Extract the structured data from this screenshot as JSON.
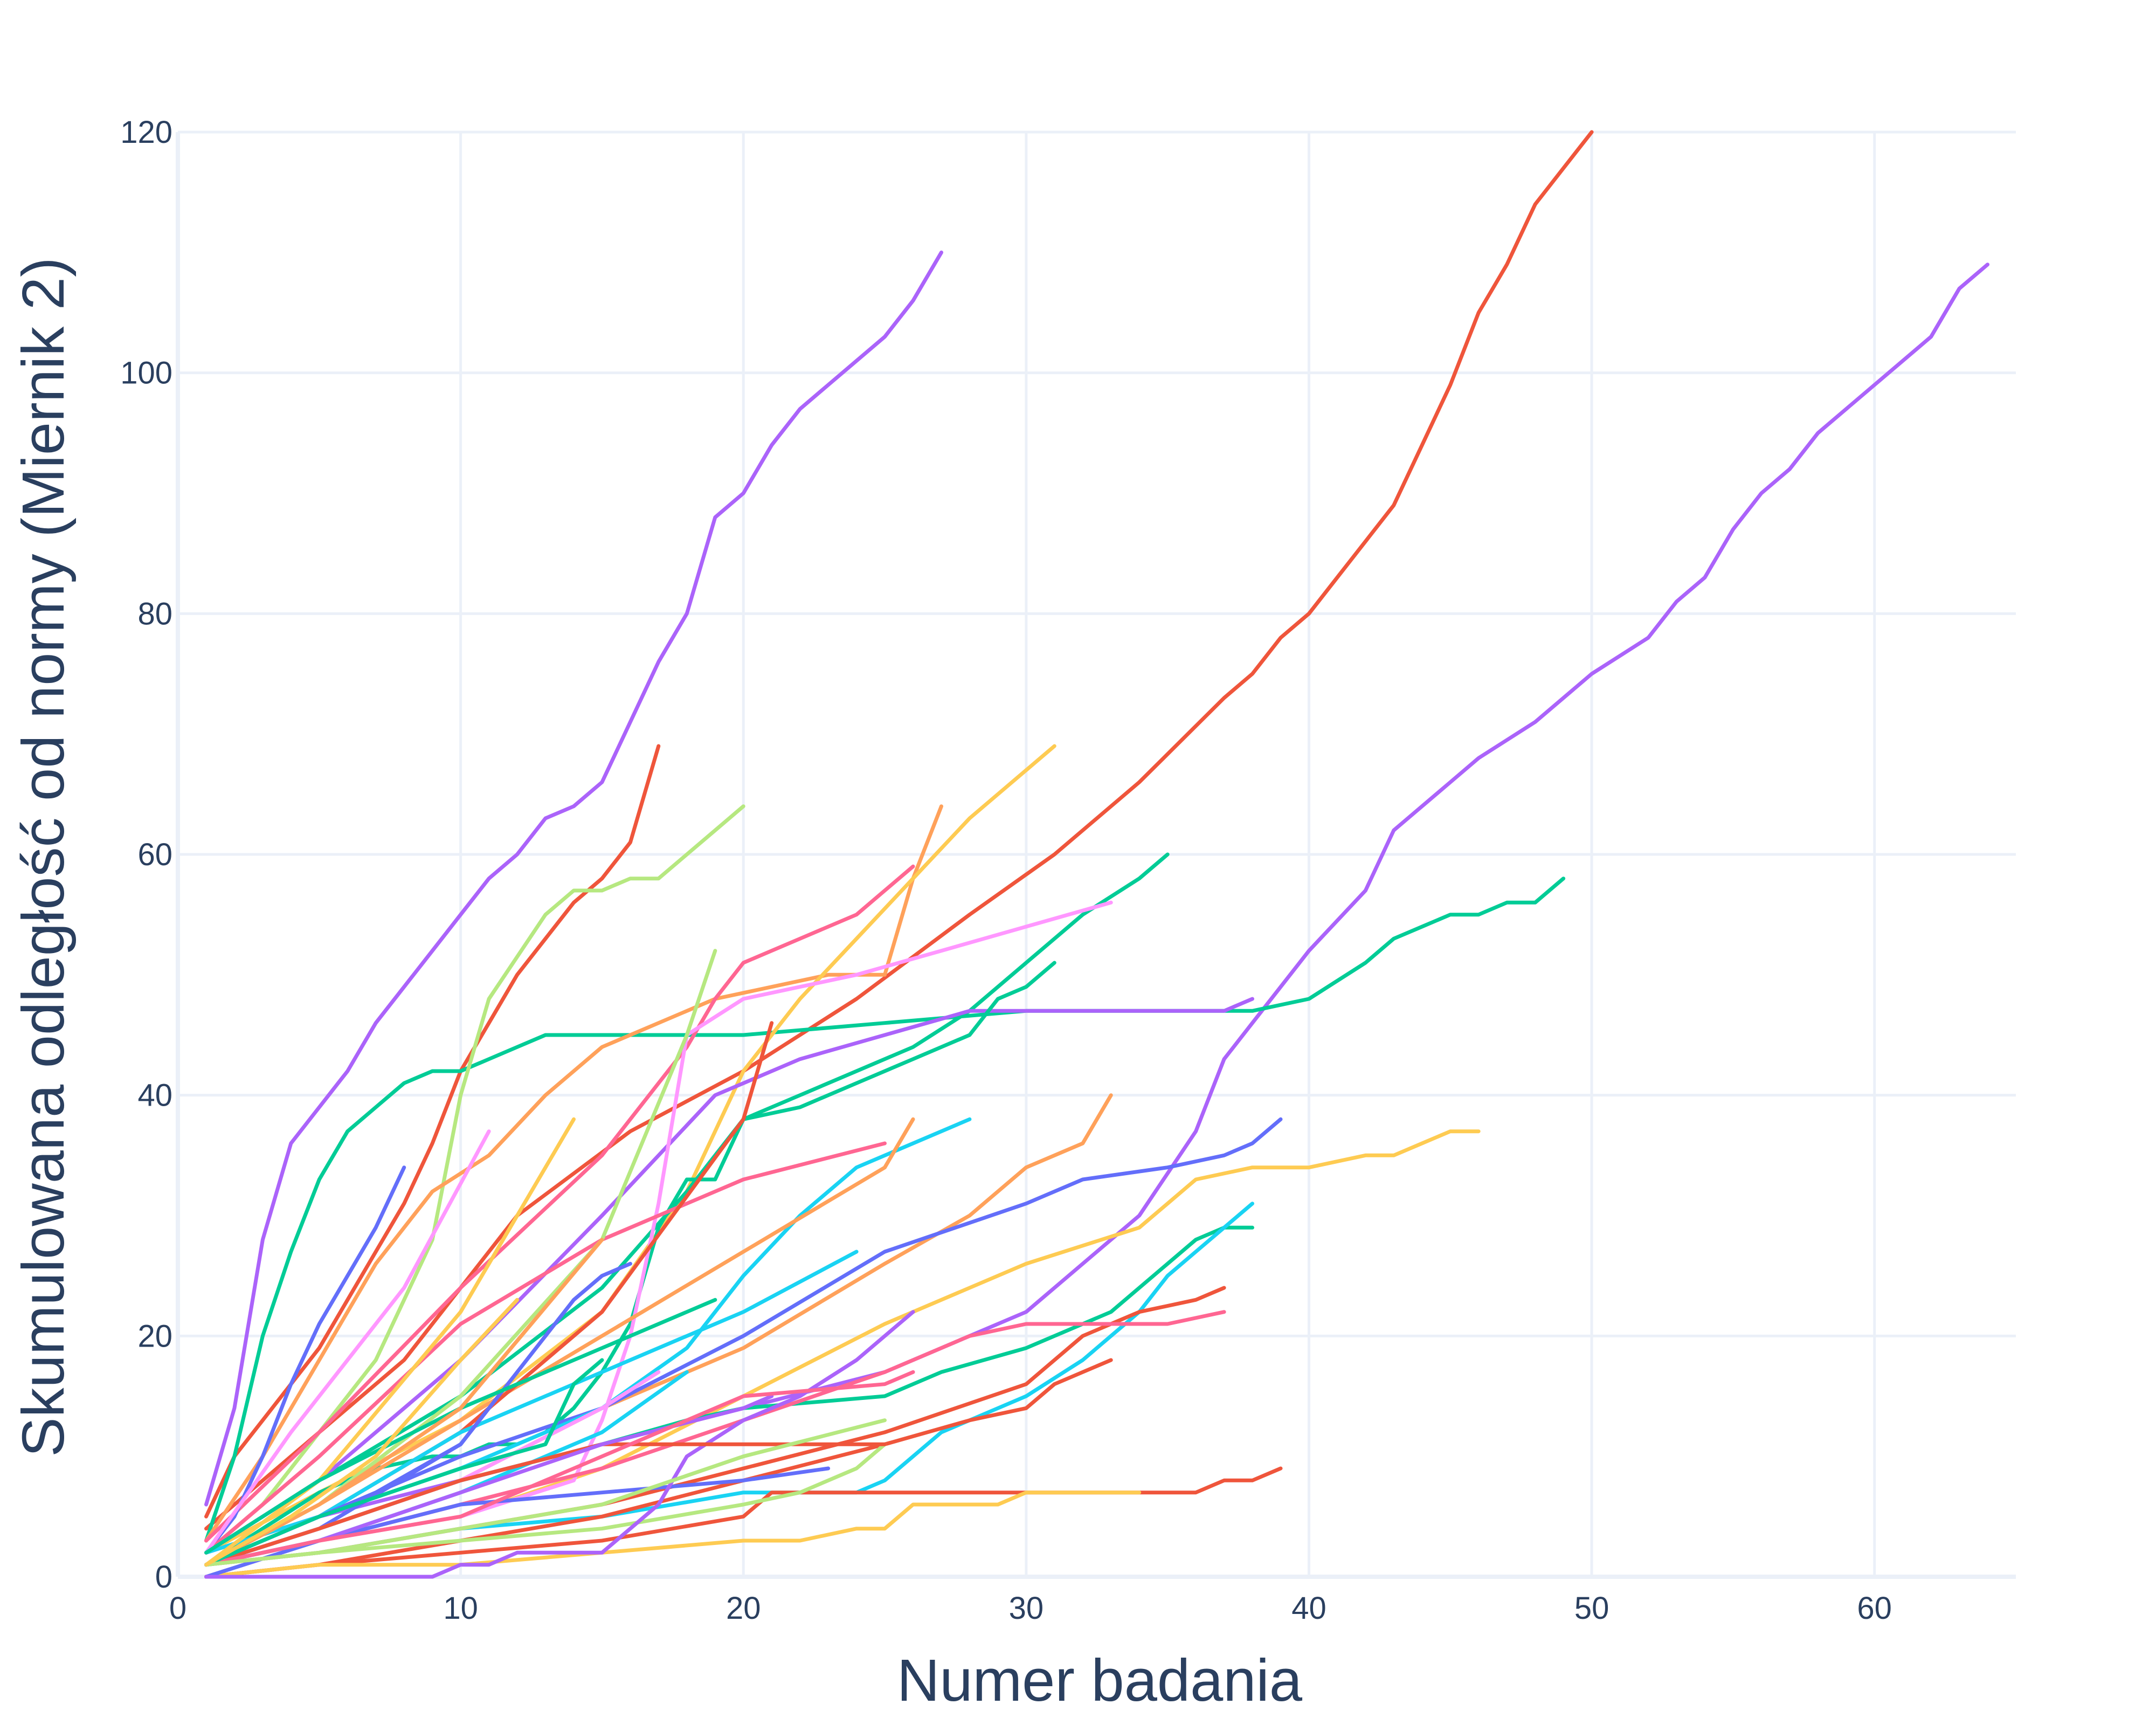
{
  "chart_data": {
    "type": "line",
    "title": "",
    "xlabel": "Numer badania",
    "ylabel": "Skumulowana odległość od normy (Miernik 2)",
    "xlim": [
      0,
      65
    ],
    "ylim": [
      0,
      120
    ],
    "xticks": [
      0,
      10,
      20,
      30,
      40,
      50,
      60
    ],
    "yticks": [
      0,
      20,
      40,
      60,
      80,
      100,
      120
    ],
    "grid": true,
    "legend": "none",
    "series": [
      {
        "color": "#AB63FA",
        "x": [
          1,
          2,
          3,
          4,
          5,
          6,
          7,
          8,
          9,
          10,
          11,
          12,
          13,
          14,
          15,
          16,
          17,
          18,
          19,
          20,
          21,
          22,
          23,
          24,
          25,
          26,
          27
        ],
        "y": [
          6,
          14,
          28,
          36,
          39,
          42,
          46,
          49,
          52,
          55,
          58,
          60,
          63,
          64,
          66,
          71,
          76,
          80,
          88,
          90,
          94,
          97,
          99,
          101,
          103,
          106,
          110
        ]
      },
      {
        "color": "#EF553B",
        "x": [
          1,
          2,
          3,
          4,
          5,
          6,
          7,
          8,
          9,
          10,
          11,
          12,
          13,
          14,
          15,
          16,
          17
        ],
        "y": [
          5,
          10,
          13,
          16,
          19,
          23,
          27,
          31,
          36,
          42,
          46,
          50,
          53,
          56,
          58,
          61,
          69
        ]
      },
      {
        "color": "#EF553B",
        "x": [
          1,
          4,
          8,
          12,
          16,
          20,
          24,
          28,
          31,
          34,
          37,
          38,
          39,
          40,
          41,
          42,
          43,
          44,
          45,
          46,
          47,
          48,
          49,
          50
        ],
        "y": [
          4,
          10,
          18,
          30,
          37,
          42,
          48,
          55,
          60,
          66,
          73,
          75,
          78,
          80,
          83,
          86,
          89,
          94,
          99,
          105,
          109,
          114,
          117,
          120
        ]
      },
      {
        "color": "#AB63FA",
        "x": [
          1,
          5,
          10,
          15,
          20,
          25,
          30,
          34,
          36,
          37,
          38,
          39,
          40,
          42,
          43,
          45,
          46,
          48,
          50,
          52,
          53,
          54,
          55,
          56,
          57,
          58,
          60,
          62,
          63,
          64
        ],
        "y": [
          2,
          5,
          8,
          11,
          14,
          17,
          22,
          30,
          37,
          43,
          46,
          49,
          52,
          57,
          62,
          66,
          68,
          71,
          75,
          78,
          81,
          83,
          87,
          90,
          92,
          95,
          99,
          103,
          107,
          109
        ]
      },
      {
        "color": "#00CC96",
        "x": [
          1,
          2,
          3,
          4,
          5,
          6,
          7,
          8,
          9,
          10,
          11,
          12,
          13,
          14,
          15,
          20,
          25,
          30,
          35,
          38,
          40,
          42,
          43,
          44,
          45,
          46,
          47,
          48,
          49
        ],
        "y": [
          3,
          10,
          20,
          27,
          33,
          37,
          39,
          41,
          42,
          42,
          43,
          44,
          45,
          45,
          45,
          45,
          46,
          47,
          47,
          47,
          48,
          51,
          53,
          54,
          55,
          55,
          56,
          56,
          58
        ]
      },
      {
        "color": "#B6E880",
        "x": [
          1,
          3,
          5,
          7,
          9,
          10,
          11,
          13,
          14,
          15,
          16,
          17,
          18,
          19,
          20
        ],
        "y": [
          2,
          6,
          12,
          18,
          28,
          40,
          48,
          55,
          57,
          57,
          58,
          58,
          60,
          62,
          64
        ]
      },
      {
        "color": "#FFA15A",
        "x": [
          1,
          3,
          5,
          7,
          9,
          11,
          13,
          15,
          17,
          19,
          21,
          23,
          25,
          26,
          27
        ],
        "y": [
          3,
          10,
          18,
          26,
          32,
          35,
          40,
          44,
          46,
          48,
          49,
          50,
          50,
          58,
          64
        ]
      },
      {
        "color": "#FECB52",
        "x": [
          1,
          5,
          10,
          15,
          18,
          20,
          22,
          24,
          26,
          28,
          30,
          31
        ],
        "y": [
          2,
          7,
          13,
          22,
          32,
          42,
          48,
          53,
          58,
          63,
          67,
          69
        ]
      },
      {
        "color": "#FF6692",
        "x": [
          1,
          5,
          10,
          15,
          18,
          19,
          20,
          22,
          24,
          25,
          26
        ],
        "y": [
          3,
          12,
          24,
          35,
          44,
          48,
          51,
          53,
          55,
          57,
          59
        ]
      },
      {
        "color": "#00CC96",
        "x": [
          1,
          5,
          10,
          15,
          18,
          20,
          22,
          24,
          26,
          28,
          30,
          32,
          34,
          35
        ],
        "y": [
          2,
          8,
          15,
          24,
          32,
          38,
          40,
          42,
          44,
          47,
          51,
          55,
          58,
          60
        ]
      },
      {
        "color": "#AB63FA",
        "x": [
          1,
          5,
          10,
          15,
          19,
          22,
          25,
          28,
          30,
          33,
          35,
          37,
          38
        ],
        "y": [
          2,
          8,
          18,
          30,
          40,
          43,
          45,
          47,
          47,
          47,
          47,
          47,
          48
        ]
      },
      {
        "color": "#00CC96",
        "x": [
          1,
          3,
          5,
          7,
          9,
          10,
          11,
          12,
          13,
          14,
          15,
          16,
          17,
          18,
          19,
          20,
          22,
          24,
          26,
          28,
          29,
          30,
          31
        ],
        "y": [
          1,
          4,
          7,
          9,
          10,
          10,
          11,
          11,
          12,
          14,
          17,
          21,
          29,
          33,
          33,
          38,
          39,
          41,
          43,
          45,
          48,
          49,
          51
        ]
      },
      {
        "color": "#FFA15A",
        "x": [
          1,
          5,
          10,
          15,
          20,
          25,
          28,
          30,
          32,
          33
        ],
        "y": [
          1,
          4,
          8,
          14,
          19,
          26,
          30,
          34,
          36,
          40
        ]
      },
      {
        "color": "#636EFA",
        "x": [
          1,
          5,
          10,
          15,
          20,
          25,
          30,
          32,
          35,
          37,
          38,
          39
        ],
        "y": [
          1,
          5,
          10,
          14,
          20,
          27,
          31,
          33,
          34,
          35,
          36,
          38
        ]
      },
      {
        "color": "#FECB52",
        "x": [
          1,
          5,
          10,
          15,
          20,
          25,
          30,
          34,
          35,
          36,
          38,
          40,
          42,
          43,
          44,
          45,
          46
        ],
        "y": [
          1,
          3,
          5,
          9,
          15,
          21,
          26,
          29,
          31,
          33,
          34,
          34,
          35,
          35,
          36,
          37,
          37
        ]
      },
      {
        "color": "#19D3F3",
        "x": [
          1,
          5,
          10,
          15,
          18,
          20,
          22,
          24,
          26,
          28
        ],
        "y": [
          2,
          5,
          9,
          14,
          19,
          25,
          30,
          34,
          36,
          38
        ]
      },
      {
        "color": "#FF97FF",
        "x": [
          1,
          5,
          10,
          14,
          15,
          16,
          17,
          18,
          20,
          24,
          27,
          30,
          33
        ],
        "y": [
          1,
          3,
          5,
          8,
          13,
          20,
          31,
          45,
          48,
          50,
          52,
          54,
          56
        ]
      },
      {
        "color": "#00CC96",
        "x": [
          1,
          5,
          10,
          15,
          18,
          20,
          25,
          27,
          30,
          33,
          35,
          36,
          37,
          38
        ],
        "y": [
          1,
          4,
          8,
          11,
          13,
          14,
          15,
          17,
          19,
          22,
          26,
          28,
          29,
          29
        ]
      },
      {
        "color": "#19D3F3",
        "x": [
          1,
          5,
          10,
          15,
          20,
          24,
          25,
          26,
          27,
          28,
          30,
          32,
          33,
          34,
          35,
          36,
          37,
          38
        ],
        "y": [
          1,
          2,
          4,
          5,
          7,
          7,
          8,
          10,
          12,
          13,
          15,
          18,
          20,
          22,
          25,
          27,
          29,
          31
        ]
      },
      {
        "color": "#EF553B",
        "x": [
          1,
          5,
          10,
          15,
          20,
          25,
          30,
          32,
          33,
          34,
          36,
          37
        ],
        "y": [
          1,
          2,
          4,
          6,
          9,
          12,
          16,
          20,
          21,
          22,
          23,
          24
        ]
      },
      {
        "color": "#FF6692",
        "x": [
          1,
          5,
          10,
          15,
          20,
          25,
          28,
          30,
          33,
          35,
          37
        ],
        "y": [
          1,
          3,
          6,
          9,
          13,
          17,
          20,
          21,
          21,
          21,
          22
        ]
      },
      {
        "color": "#EF553B",
        "x": [
          1,
          5,
          10,
          15,
          20,
          25,
          28,
          30,
          31,
          32,
          33
        ],
        "y": [
          0,
          1,
          3,
          5,
          8,
          11,
          13,
          14,
          16,
          17,
          18
        ]
      },
      {
        "color": "#EF553B",
        "x": [
          1,
          5,
          10,
          15,
          20,
          21,
          25,
          30,
          33,
          35,
          36,
          37,
          38,
          39
        ],
        "y": [
          0,
          1,
          2,
          3,
          5,
          7,
          7,
          7,
          7,
          7,
          7,
          8,
          8,
          9
        ]
      },
      {
        "color": "#FECB52",
        "x": [
          1,
          5,
          10,
          15,
          20,
          22,
          24,
          25,
          26,
          28,
          29,
          30,
          31,
          32,
          33,
          34
        ],
        "y": [
          0,
          1,
          1,
          2,
          3,
          3,
          4,
          4,
          6,
          6,
          6,
          7,
          7,
          7,
          7,
          7
        ]
      },
      {
        "color": "#636EFA",
        "x": [
          1,
          5,
          10,
          15,
          20,
          23
        ],
        "y": [
          0,
          3,
          6,
          7,
          8,
          9
        ]
      },
      {
        "color": "#B6E880",
        "x": [
          1,
          5,
          10,
          15,
          20,
          22,
          24,
          25
        ],
        "y": [
          1,
          2,
          3,
          4,
          6,
          7,
          9,
          11
        ]
      },
      {
        "color": "#AB63FA",
        "x": [
          1,
          9,
          10,
          11,
          12,
          13,
          14,
          15,
          16,
          17,
          18,
          20,
          22,
          24,
          26
        ],
        "y": [
          0,
          0,
          1,
          1,
          2,
          2,
          2,
          2,
          4,
          6,
          10,
          13,
          15,
          18,
          22
        ]
      },
      {
        "color": "#636EFA",
        "x": [
          1,
          2,
          3,
          4,
          5,
          6,
          7,
          8
        ],
        "y": [
          2,
          5,
          10,
          16,
          21,
          25,
          29,
          34
        ]
      },
      {
        "color": "#FF6692",
        "x": [
          1,
          5,
          10,
          15,
          20,
          25
        ],
        "y": [
          2,
          10,
          21,
          28,
          33,
          36
        ]
      },
      {
        "color": "#FFA15A",
        "x": [
          1,
          5,
          10,
          15,
          20,
          25,
          26
        ],
        "y": [
          1,
          6,
          13,
          20,
          27,
          34,
          38
        ]
      },
      {
        "color": "#B6E880",
        "x": [
          1,
          5,
          10,
          15,
          18,
          19
        ],
        "y": [
          1,
          6,
          15,
          28,
          45,
          52
        ]
      },
      {
        "color": "#EF553B",
        "x": [
          1,
          5,
          10,
          15,
          20,
          21
        ],
        "y": [
          1,
          5,
          12,
          22,
          38,
          46
        ]
      },
      {
        "color": "#FF97FF",
        "x": [
          1,
          4,
          8,
          11
        ],
        "y": [
          2,
          12,
          24,
          37
        ]
      },
      {
        "color": "#FECB52",
        "x": [
          1,
          5,
          10,
          14
        ],
        "y": [
          1,
          8,
          22,
          38
        ]
      },
      {
        "color": "#19D3F3",
        "x": [
          1,
          5,
          10,
          15,
          20,
          24
        ],
        "y": [
          1,
          5,
          12,
          17,
          22,
          27
        ]
      },
      {
        "color": "#636EFA",
        "x": [
          1,
          5,
          10,
          13,
          14,
          15,
          16
        ],
        "y": [
          1,
          4,
          11,
          20,
          23,
          25,
          26
        ]
      },
      {
        "color": "#00CC96",
        "x": [
          1,
          5,
          10,
          15,
          19
        ],
        "y": [
          2,
          8,
          14,
          19,
          23
        ]
      },
      {
        "color": "#FFA15A",
        "x": [
          1,
          5,
          10,
          15
        ],
        "y": [
          1,
          6,
          14,
          28
        ]
      },
      {
        "color": "#FF97FF",
        "x": [
          1,
          5,
          10,
          15,
          17
        ],
        "y": [
          1,
          4,
          8,
          14,
          17
        ]
      },
      {
        "color": "#19D3F3",
        "x": [
          1,
          5,
          10,
          15,
          18
        ],
        "y": [
          1,
          3,
          7,
          12,
          17
        ]
      },
      {
        "color": "#EF553B",
        "x": [
          1,
          5,
          10,
          15,
          20,
          25
        ],
        "y": [
          1,
          4,
          8,
          11,
          11,
          11
        ]
      },
      {
        "color": "#636EFA",
        "x": [
          1,
          4,
          7,
          10,
          11
        ],
        "y": [
          1,
          4,
          7,
          11,
          14
        ]
      },
      {
        "color": "#AB63FA",
        "x": [
          1,
          5,
          10,
          15,
          20,
          21
        ],
        "y": [
          1,
          3,
          7,
          11,
          14,
          15
        ]
      },
      {
        "color": "#FF6692",
        "x": [
          1,
          5,
          10,
          15,
          20,
          25,
          26
        ],
        "y": [
          1,
          3,
          5,
          10,
          15,
          16,
          17
        ]
      },
      {
        "color": "#00CC96",
        "x": [
          1,
          5,
          10,
          13,
          14,
          15
        ],
        "y": [
          1,
          5,
          9,
          11,
          16,
          18
        ]
      },
      {
        "color": "#B6E880",
        "x": [
          1,
          5,
          10,
          15,
          20,
          25
        ],
        "y": [
          1,
          2,
          4,
          6,
          10,
          13
        ]
      },
      {
        "color": "#FECB52",
        "x": [
          1,
          4,
          7,
          10,
          12
        ],
        "y": [
          1,
          5,
          10,
          18,
          23
        ]
      }
    ]
  }
}
